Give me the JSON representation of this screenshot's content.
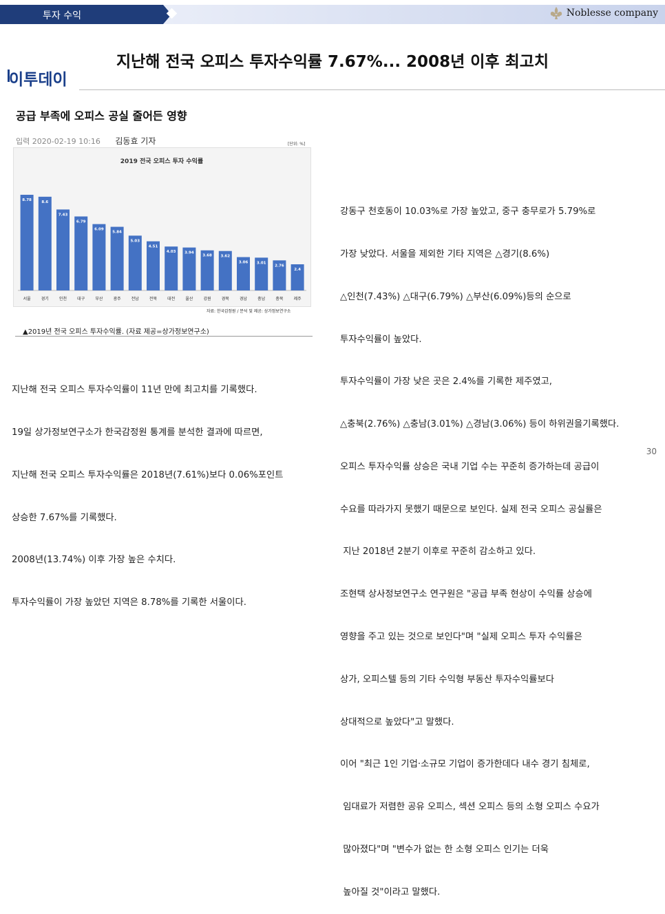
{
  "header": {
    "section_label": "투자 수익",
    "brand": "Noblesse company"
  },
  "headline": "지난해 전국 오피스 투자수익률 7.67%... 2008년 이후 최고치",
  "logo": "이투데이",
  "subheadline": "공급 부족에 오피스 공실 줄어든 영향",
  "byline": {
    "date": "입력 2020-02-19 10:16",
    "reporter": "김동효 기자"
  },
  "chart_unit": "[단위: %]",
  "chart_source": "자료: 한국감정원 / 분석 및 제공: 상가정보연구소",
  "chart_data": {
    "type": "bar",
    "title": "2019 전국 오피스 투자 수익률",
    "categories": [
      "서울",
      "경기",
      "인천",
      "대구",
      "부산",
      "광주",
      "전남",
      "전북",
      "대전",
      "울산",
      "강원",
      "경북",
      "경남",
      "충남",
      "충북",
      "제주"
    ],
    "values": [
      8.78,
      8.6,
      7.43,
      6.79,
      6.09,
      5.84,
      5.03,
      4.51,
      4.03,
      3.94,
      3.68,
      3.62,
      3.06,
      3.01,
      2.76,
      2.4
    ],
    "value_labels": [
      "8.78",
      "8.6",
      "7.43",
      "6.79",
      "6.09",
      "5.84",
      "5.03",
      "4.51",
      "4.03",
      "3.94",
      "3.68",
      "3.62",
      "3.06",
      "3.01",
      "2.76",
      "2.4"
    ],
    "ylim": [
      0,
      10
    ],
    "colors": {
      "bar": "#4472c4",
      "background": "#f4f4f4"
    },
    "grid": false
  },
  "caption": "▲2019년 전국 오피스 투자수익률. (자료 제공=상가정보연구소)",
  "left_paragraph": [
    "지난해 전국 오피스 투자수익률이 11년 만에 최고치를 기록했다.",
    "19일 상가정보연구소가 한국감정원 통계를 분석한 결과에 따르면,",
    "지난해 전국 오피스 투자수익률은 2018년(7.61%)보다 0.06%포인트",
    "상승한 7.67%를 기록했다.",
    "2008년(13.74%) 이후 가장 높은 수치다.",
    "투자수익률이 가장 높았던 지역은 8.78%를 기록한 서울이다."
  ],
  "right_paragraph": [
    "강동구 천호동이 10.03%로 가장 높았고, 중구 충무로가 5.79%로",
    "가장 낮았다. 서울을 제외한 기타 지역은 △경기(8.6%)",
    "△인천(7.43%) △대구(6.79%) △부산(6.09%)등의 순으로",
    "투자수익률이 높았다.",
    "투자수익률이 가장 낮은 곳은 2.4%를 기록한 제주였고,",
    "△충북(2.76%) △충남(3.01%) △경남(3.06%) 등이 하위권을기록했다.",
    "오피스 투자수익률 상승은 국내 기업 수는 꾸준히 증가하는데 공급이",
    "수요를 따라가지 못했기 때문으로 보인다. 실제 전국 오피스 공실률은",
    " 지난 2018년 2분기 이후로 꾸준히 감소하고 있다.",
    "조현택 상사정보연구소 연구원은 \"공급 부족 현상이 수익률 상승에",
    "영향을 주고 있는 것으로 보인다\"며 \"실제 오피스 투자 수익률은",
    "상가, 오피스텔 등의 기타 수익형 부동산 투자수익률보다",
    "상대적으로 높았다\"고 말했다.",
    "이어 \"최근 1인 기업·소규모 기업이 증가한데다 내수 경기 침체로,",
    " 임대료가 저렴한 공유 오피스, 섹션 오피스 등의 소형 오피스 수요가",
    " 많아졌다\"며 \"변수가 없는 한 소형 오피스 인기는 더욱",
    " 높아질 것\"이라고 말했다."
  ],
  "page_number": "30"
}
